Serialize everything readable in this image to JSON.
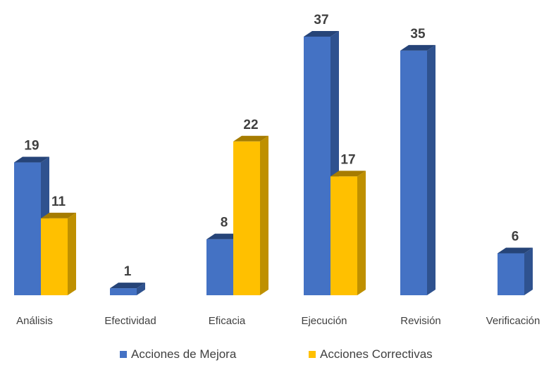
{
  "chart_data": {
    "type": "bar",
    "categories": [
      "Análisis",
      "Efectividad",
      "Eficacia",
      "Ejecución",
      "Revisión",
      "Verificación"
    ],
    "series": [
      {
        "name": "Acciones de Mejora",
        "color": "#4472C4",
        "side": "#2F528F",
        "top": "#264478",
        "values": [
          19,
          1,
          8,
          37,
          35,
          6
        ]
      },
      {
        "name": "Acciones Correctivas",
        "color": "#FFC000",
        "side": "#BF9000",
        "top": "#A67C00",
        "values": [
          11,
          null,
          22,
          17,
          null,
          null
        ]
      }
    ],
    "legend_position": "bottom",
    "grid": false,
    "ylim": [
      0,
      37
    ]
  }
}
